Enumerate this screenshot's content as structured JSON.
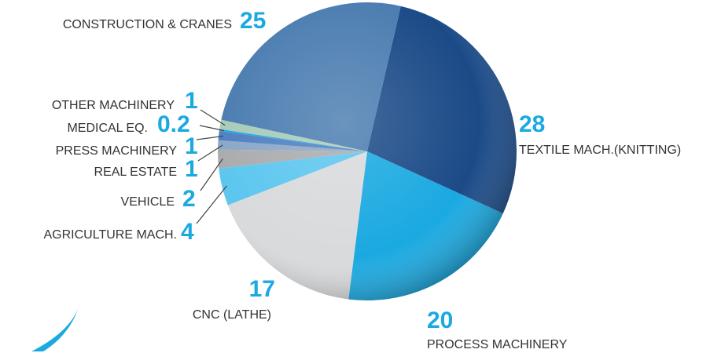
{
  "chart_data": {
    "type": "pie",
    "categories": [
      "TEXTILE MACH.(KNITTING)",
      "PROCESS MACHINERY",
      "CNC (LATHE)",
      "AGRICULTURE MACH.",
      "VEHICLE",
      "REAL ESTATE",
      "PRESS MACHINERY",
      "MEDICAL EQ.",
      "OTHER MACHINERY",
      "CONSTRUCTION & CRANES"
    ],
    "values": [
      28,
      20,
      17,
      4,
      2,
      1,
      1,
      0.2,
      1,
      25
    ],
    "colors": [
      "#1b4a87",
      "#1aa9e1",
      "#d8dadc",
      "#5cc6ef",
      "#a9abad",
      "#8aa6c8",
      "#4f7fbf",
      "#1aa9e1",
      "#a8cbb8",
      "#4a7cb0"
    ]
  }
}
